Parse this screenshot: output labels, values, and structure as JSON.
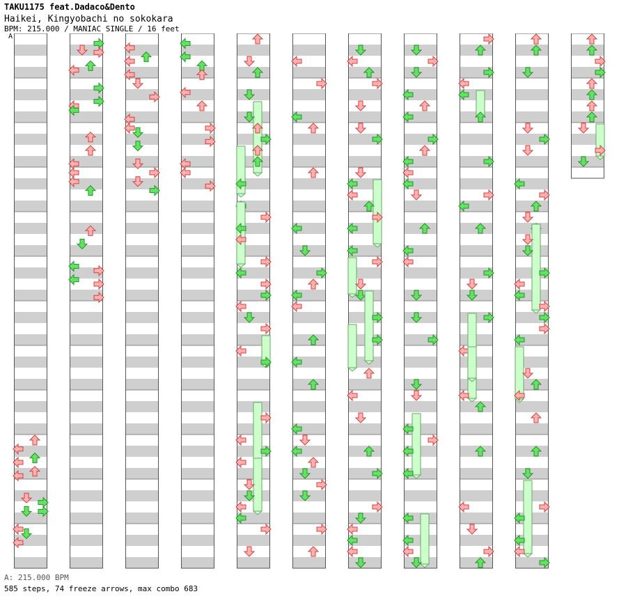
{
  "header": {
    "artist": "TAKU1175 feat.Dadaco&Dento",
    "title": "Haikei, Kingyobachi no sokokara",
    "info": "BPM: 215.000 / MANIAC SINGLE / 16 feet"
  },
  "bpm_marker": "A",
  "footer": {
    "bpm_legend": "A: 215.000 BPM",
    "stats": "585 steps, 74 freeze arrows, max combo 683"
  },
  "chart_data": {
    "type": "step-chart",
    "bpm": 215,
    "difficulty": "MANIAC",
    "mode": "SINGLE",
    "foot_rating": 16,
    "steps": 585,
    "freeze_arrows": 74,
    "max_combo": 683,
    "measures_per_column": 12,
    "beats_per_measure": 4,
    "lanes": [
      "left",
      "down",
      "up",
      "right"
    ],
    "columns": [
      {
        "arrows": [
          [
            9.2,
            0
          ],
          [
            9.5,
            0
          ],
          [
            9.8,
            0
          ],
          [
            9.0,
            2
          ],
          [
            9.4,
            2
          ],
          [
            9.7,
            2
          ],
          [
            10.3,
            1
          ],
          [
            10.6,
            1
          ],
          [
            10.4,
            3
          ],
          [
            10.6,
            3
          ],
          [
            11.0,
            0
          ],
          [
            11.3,
            0
          ],
          [
            11.1,
            1
          ]
        ],
        "freezes": []
      },
      {
        "arrows": [
          [
            0.1,
            3
          ],
          [
            0.3,
            3
          ],
          [
            0.25,
            1
          ],
          [
            0.7,
            0
          ],
          [
            0.6,
            2
          ],
          [
            1.1,
            3
          ],
          [
            1.4,
            3
          ],
          [
            1.5,
            0
          ],
          [
            1.6,
            0
          ],
          [
            2.2,
            2
          ],
          [
            2.5,
            2
          ],
          [
            2.8,
            0
          ],
          [
            3.0,
            0
          ],
          [
            3.2,
            0
          ],
          [
            3.4,
            2
          ],
          [
            4.3,
            2
          ],
          [
            4.6,
            1
          ],
          [
            5.1,
            0
          ],
          [
            5.4,
            0
          ],
          [
            5.2,
            3
          ],
          [
            5.5,
            3
          ],
          [
            5.8,
            3
          ]
        ],
        "freezes": []
      },
      {
        "arrows": [
          [
            0.2,
            0
          ],
          [
            0.5,
            0
          ],
          [
            0.8,
            0
          ],
          [
            0.4,
            2
          ],
          [
            1.0,
            1
          ],
          [
            1.3,
            3
          ],
          [
            1.8,
            0
          ],
          [
            2.0,
            0
          ],
          [
            2.1,
            1
          ],
          [
            2.4,
            1
          ],
          [
            2.8,
            1
          ],
          [
            3.2,
            1
          ],
          [
            3.0,
            3
          ],
          [
            3.4,
            3
          ]
        ],
        "freezes": []
      },
      {
        "arrows": [
          [
            0.1,
            0
          ],
          [
            0.4,
            0
          ],
          [
            0.6,
            2
          ],
          [
            0.8,
            2
          ],
          [
            1.2,
            0
          ],
          [
            1.5,
            2
          ],
          [
            2.0,
            3
          ],
          [
            2.3,
            3
          ],
          [
            2.8,
            0
          ],
          [
            3.0,
            0
          ],
          [
            3.3,
            3
          ]
        ],
        "freezes": []
      }
    ]
  }
}
